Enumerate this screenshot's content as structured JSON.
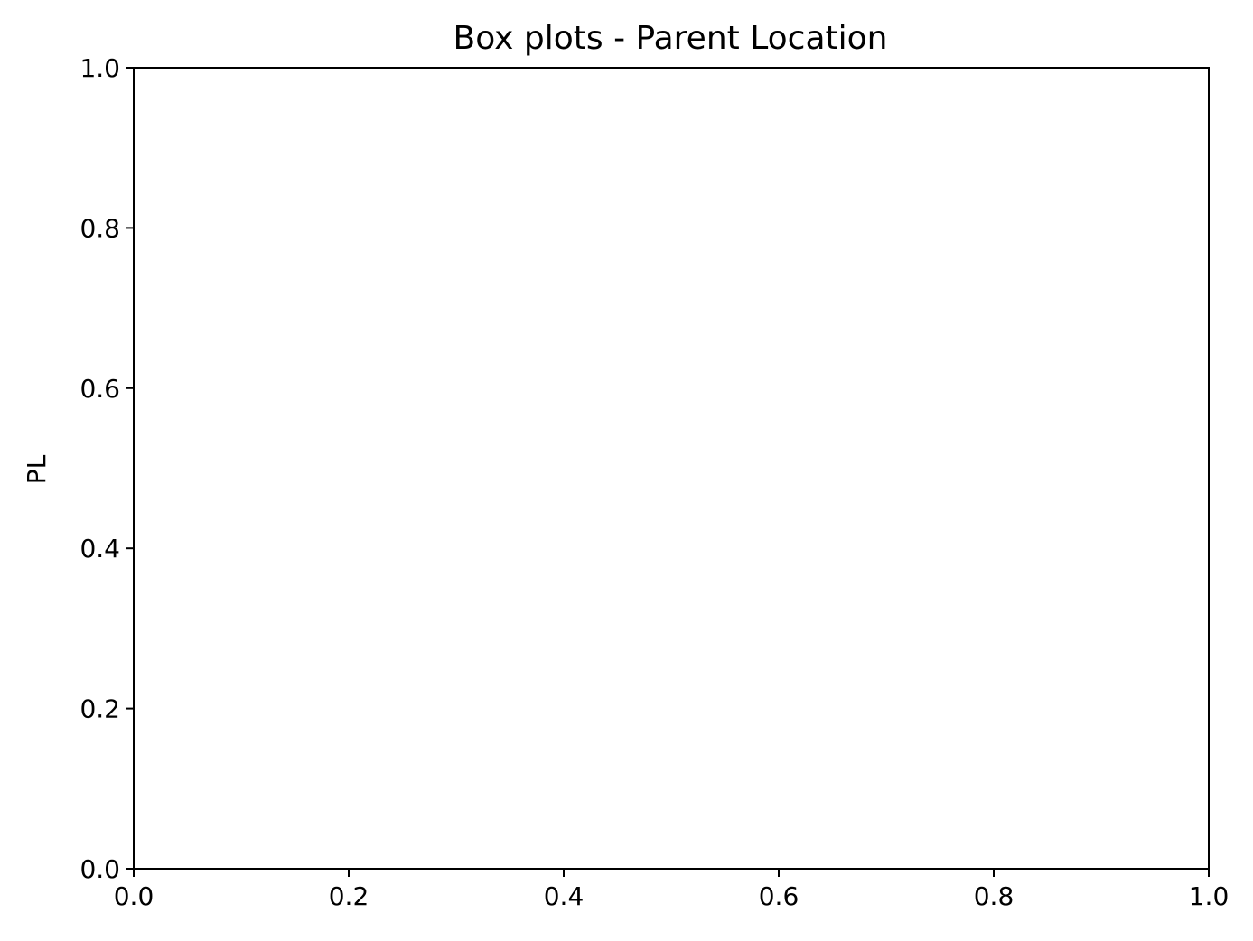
{
  "chart_data": {
    "type": "box",
    "title": "Box plots - Parent Location",
    "xlabel": "",
    "ylabel": "PL",
    "xlim": [
      0.0,
      1.0
    ],
    "ylim": [
      0.0,
      1.0
    ],
    "xticks": [
      0.0,
      0.2,
      0.4,
      0.6,
      0.8,
      1.0
    ],
    "yticks": [
      0.0,
      0.2,
      0.4,
      0.6,
      0.8,
      1.0
    ],
    "xtick_labels": [
      "0.0",
      "0.2",
      "0.4",
      "0.6",
      "0.8",
      "1.0"
    ],
    "ytick_labels": [
      "0.0",
      "0.2",
      "0.4",
      "0.6",
      "0.8",
      "1.0"
    ],
    "series": [],
    "grid": false,
    "legend": "none"
  }
}
